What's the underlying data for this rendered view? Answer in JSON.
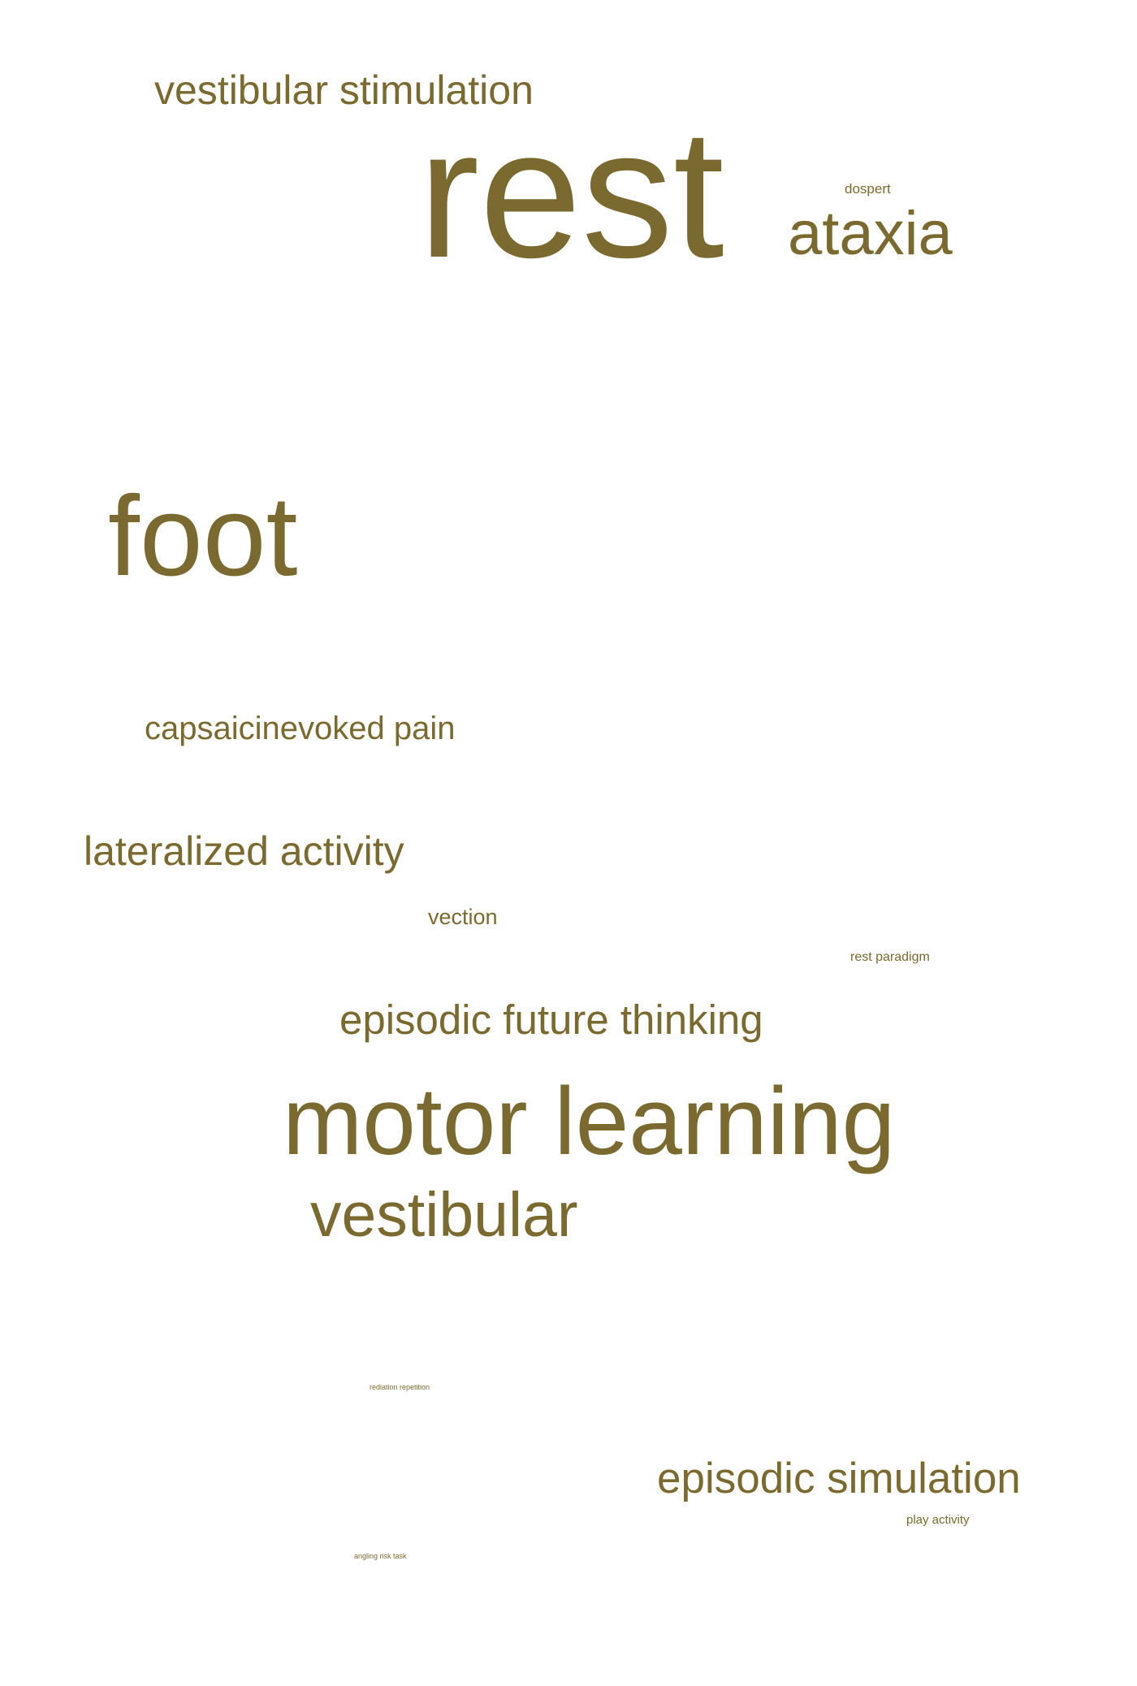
{
  "word_cloud": {
    "color": "#7a6a2f",
    "words": [
      {
        "key": "w01",
        "text": "vestibular stimulation"
      },
      {
        "key": "w02",
        "text": "rest"
      },
      {
        "key": "w03",
        "text": "dospert"
      },
      {
        "key": "w04",
        "text": "ataxia"
      },
      {
        "key": "w05",
        "text": "foot"
      },
      {
        "key": "w06",
        "text": "capsaicinevoked pain"
      },
      {
        "key": "w07",
        "text": "lateralized activity"
      },
      {
        "key": "w08",
        "text": "vection"
      },
      {
        "key": "w09",
        "text": "rest paradigm"
      },
      {
        "key": "w10",
        "text": "episodic future thinking"
      },
      {
        "key": "w11",
        "text": "motor learning"
      },
      {
        "key": "w12",
        "text": "vestibular"
      },
      {
        "key": "w13",
        "text": "rediation repetition"
      },
      {
        "key": "w14",
        "text": "episodic simulation"
      },
      {
        "key": "w15",
        "text": "play activity"
      },
      {
        "key": "w16",
        "text": "angling risk task"
      }
    ]
  }
}
